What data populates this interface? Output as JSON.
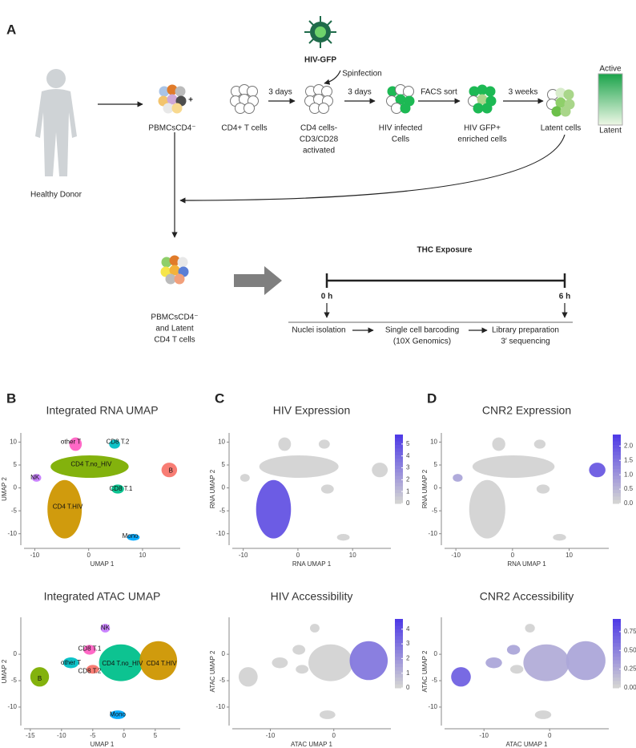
{
  "panel_a": {
    "label": "A",
    "donor": "Healthy Donor",
    "virus": "HIV-GFP",
    "spinfection": "Spinfection",
    "plus": "+",
    "steps": [
      {
        "lines": [
          "PBMCsCD4⁻"
        ]
      },
      {
        "lines": [
          "CD4+ T cells"
        ]
      },
      {
        "lines": [
          "CD4 cells-",
          "CD3/CD28",
          "activated"
        ]
      },
      {
        "lines": [
          "HIV infected",
          "Cells"
        ]
      },
      {
        "lines": [
          "HIV GFP+",
          "enriched cells"
        ]
      },
      {
        "lines": [
          "Latent cells"
        ]
      }
    ],
    "arrow_labels": [
      "3 days",
      "3 days",
      "FACS sort",
      "3 weeks"
    ],
    "gradient": {
      "top": "Active",
      "bottom": "Latent"
    },
    "mix_label": [
      "PBMCsCD4⁻",
      "and Latent",
      "CD4 T cells"
    ],
    "timeline": {
      "title": "THC Exposure",
      "start": "0 h",
      "end": "6 h",
      "steps": [
        [
          "Nuclei isolation"
        ],
        [
          "Single cell barcoding",
          "(10X Genomics)"
        ],
        [
          "Library preparation",
          "3′ sequencing"
        ]
      ]
    }
  },
  "panels": [
    {
      "label": "B",
      "plots": [
        {
          "title": "Integrated RNA UMAP",
          "xlabel": "UMAP 1",
          "ylabel": "UMAP 2",
          "xlim": [
            -12,
            17
          ],
          "ylim": [
            -12.5,
            12
          ],
          "xticks": [
            -10,
            0,
            10
          ],
          "yticks": [
            10,
            5,
            0,
            -5,
            -10
          ],
          "clusters": [
            "NK",
            "other T",
            "CD8 T.2",
            "CD4 T.no_HIV",
            "B",
            "CD8 T.1",
            "CD4 T.HIV",
            "Mono"
          ]
        },
        {
          "title": "Integrated ATAC UMAP",
          "xlabel": "UMAP 1",
          "ylabel": "UMAP 2",
          "xlim": [
            -16,
            9
          ],
          "ylim": [
            -13.5,
            7
          ],
          "xticks": [
            -15,
            -10,
            -5,
            0,
            5
          ],
          "yticks": [
            0,
            -5,
            -10
          ],
          "clusters": [
            "NK",
            "CD8 T.1",
            "other T",
            "B",
            "CD8 T.2",
            "CD4 T.no_HIV",
            "CD4 T.HIV",
            "Mono"
          ]
        }
      ]
    },
    {
      "label": "C",
      "plots": [
        {
          "title": "HIV Expression",
          "xlabel": "RNA UMAP 1",
          "ylabel": "RNA UMAP 2",
          "xlim": [
            -12,
            17
          ],
          "ylim": [
            -12.5,
            12
          ],
          "xticks": [
            -10,
            0,
            10
          ],
          "yticks": [
            10,
            5,
            0,
            -5,
            -10
          ],
          "clim": [
            0,
            5.8
          ],
          "cticks": [
            5,
            4,
            3,
            2,
            1,
            0
          ]
        },
        {
          "title": "HIV Accessibility",
          "xlabel": "ATAC UMAP 1",
          "ylabel": "ATAC UMAP 2",
          "xlim": [
            -16,
            9
          ],
          "ylim": [
            -13.5,
            7
          ],
          "xticks": [
            -10,
            0
          ],
          "yticks": [
            0,
            -5,
            -10
          ],
          "clim": [
            0,
            4.7
          ],
          "cticks": [
            4,
            3,
            2,
            1,
            0
          ]
        }
      ]
    },
    {
      "label": "D",
      "plots": [
        {
          "title": "CNR2 Expression",
          "xlabel": "RNA UMAP 1",
          "ylabel": "RNA UMAP 2",
          "xlim": [
            -12,
            17
          ],
          "ylim": [
            -12.5,
            12
          ],
          "xticks": [
            -10,
            0,
            10
          ],
          "yticks": [
            10,
            5,
            0,
            -5,
            -10
          ],
          "clim": [
            0,
            2.4
          ],
          "cticks": [
            {
              "value": 2,
              "label": "2.0"
            },
            1.5,
            {
              "value": 1,
              "label": "1.0"
            },
            0.5,
            {
              "value": 0,
              "label": "0.0"
            }
          ]
        },
        {
          "title": "CNR2 Accessibility",
          "xlabel": "ATAC UMAP 1",
          "ylabel": "ATAC UMAP 2",
          "xlim": [
            -16,
            9
          ],
          "ylim": [
            -13.5,
            7
          ],
          "xticks": [
            -10,
            0
          ],
          "yticks": [
            0,
            -5,
            -10
          ],
          "clim": [
            0,
            0.92
          ],
          "cticks": [
            0.75,
            {
              "value": 0.5,
              "label": "0.50"
            },
            0.25,
            {
              "value": 0,
              "label": "0.00"
            }
          ]
        }
      ]
    }
  ]
}
